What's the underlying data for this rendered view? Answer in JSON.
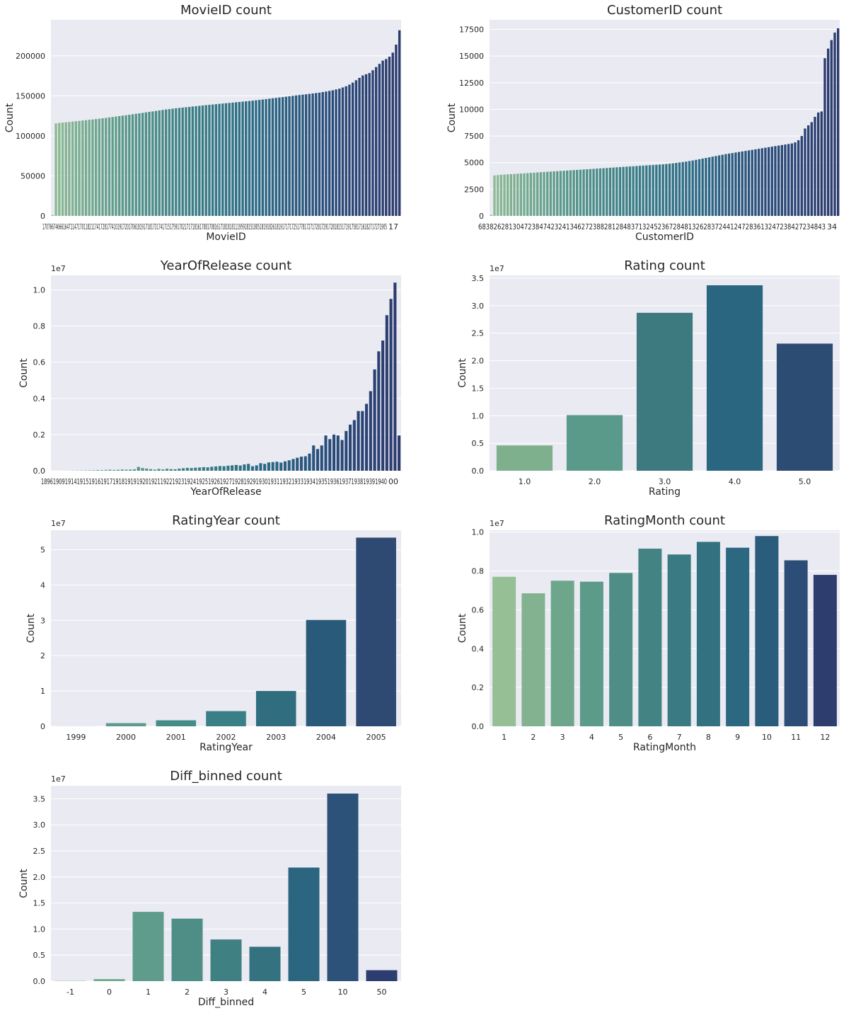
{
  "chart_data": [
    {
      "type": "bar",
      "title": "MovieID count",
      "xlabel": "MovieID",
      "ylabel": "Count",
      "ylim": [
        0,
        245000
      ],
      "yticks": [
        0,
        50000,
        100000,
        150000,
        200000
      ],
      "ytick_labels": [
        "0",
        "50000",
        "100000",
        "150000",
        "200000"
      ],
      "sci_label": "",
      "grid": true,
      "dense_tick_text": "1707667466616471147170118211741728177410191720170618191718173174171517591702171718161708170816171818181119591815180518191826181917171725177817271728172917281815171917581716182717271905",
      "dense_tick_last": "17",
      "dense_tick_prefix": "17",
      "palette": [
        "#8fbc94",
        "#5a9a8a",
        "#3a7f86",
        "#2b6a85",
        "#2a4c7a",
        "#2c3b6e"
      ],
      "values": [
        1200,
        115500,
        116200,
        116600,
        117000,
        117400,
        117900,
        118300,
        118700,
        119200,
        119600,
        120100,
        120500,
        121000,
        121500,
        122000,
        122500,
        123100,
        123600,
        124200,
        124700,
        125300,
        125800,
        126400,
        127000,
        127600,
        128200,
        128800,
        129400,
        130000,
        130600,
        131200,
        131800,
        132400,
        133000,
        133500,
        134000,
        134500,
        135000,
        135400,
        135800,
        136200,
        136700,
        137100,
        137500,
        138000,
        138400,
        138800,
        139200,
        139600,
        140000,
        140400,
        140800,
        141200,
        141600,
        142000,
        142400,
        142800,
        143200,
        143600,
        144000,
        144500,
        145000,
        145500,
        146000,
        146500,
        147000,
        147500,
        148000,
        148500,
        149000,
        149500,
        150000,
        150500,
        151000,
        151500,
        152000,
        152500,
        153000,
        153500,
        154000,
        154700,
        155400,
        156200,
        157000,
        158000,
        159000,
        160500,
        162000,
        164000,
        166500,
        169500,
        172500,
        175500,
        177000,
        178500,
        182000,
        186000,
        190000,
        194000,
        196000,
        199000,
        204000,
        214000,
        232000
      ]
    },
    {
      "type": "bar",
      "title": "CustomerID count",
      "xlabel": "CustomerID",
      "ylabel": "Count",
      "ylim": [
        0,
        18400
      ],
      "yticks": [
        0,
        2500,
        5000,
        7500,
        10000,
        12500,
        15000,
        17500
      ],
      "ytick_labels": [
        "0",
        "2500",
        "5000",
        "7500",
        "10000",
        "12500",
        "15000",
        "17500"
      ],
      "sci_label": "",
      "grid": true,
      "dense_tick_text": "6838262813047238474232413462723882812848371324523672848132628372441247283613247238427234843",
      "dense_tick_last": "34",
      "dense_tick_prefix": "6",
      "palette": [
        "#8fbc94",
        "#5a9a8a",
        "#3a7f86",
        "#2b6a85",
        "#2a4c7a",
        "#2c3b6e"
      ],
      "values": [
        100,
        3800,
        3830,
        3860,
        3880,
        3900,
        3920,
        3940,
        3960,
        3980,
        4000,
        4020,
        4040,
        4060,
        4080,
        4100,
        4120,
        4140,
        4160,
        4180,
        4200,
        4220,
        4240,
        4260,
        4280,
        4300,
        4320,
        4340,
        4360,
        4380,
        4400,
        4420,
        4440,
        4460,
        4480,
        4500,
        4520,
        4540,
        4560,
        4580,
        4600,
        4620,
        4640,
        4660,
        4680,
        4700,
        4720,
        4740,
        4760,
        4780,
        4800,
        4820,
        4840,
        4870,
        4900,
        4940,
        4980,
        5020,
        5060,
        5100,
        5150,
        5200,
        5260,
        5320,
        5380,
        5440,
        5500,
        5560,
        5620,
        5680,
        5740,
        5800,
        5850,
        5900,
        5950,
        6000,
        6050,
        6100,
        6150,
        6200,
        6250,
        6300,
        6350,
        6400,
        6450,
        6500,
        6550,
        6600,
        6650,
        6700,
        6750,
        6800,
        6900,
        7100,
        7500,
        8200,
        8500,
        8800,
        9300,
        9700,
        9800,
        14800,
        15700,
        16500,
        17200,
        17600
      ]
    },
    {
      "type": "bar",
      "title": "YearOfRelease count",
      "xlabel": "YearOfRelease",
      "ylabel": "Count",
      "ylim": [
        0,
        10800000
      ],
      "yticks": [
        0,
        2000000,
        4000000,
        6000000,
        8000000,
        10000000
      ],
      "ytick_labels": [
        "0.0",
        "0.2",
        "0.4",
        "0.6",
        "0.8",
        "1.0"
      ],
      "sci_label": "1e7",
      "grid": true,
      "dense_tick_text": "18961909191419151916191719181919192019211922192319241925192619271928192919301931193219331934193519361937193819391940",
      "dense_tick_last": "00",
      "dense_tick_prefix": "18",
      "palette": [
        "#8fbc94",
        "#5a9a8a",
        "#3a7f86",
        "#2b6a85",
        "#2a4c7a",
        "#2c3b6e"
      ],
      "values": [
        2000,
        3000,
        4000,
        5000,
        8000,
        10000,
        12000,
        15000,
        20000,
        25000,
        30000,
        40000,
        35000,
        50000,
        60000,
        45000,
        55000,
        70000,
        60000,
        65000,
        80000,
        210000,
        150000,
        120000,
        90000,
        60000,
        100000,
        70000,
        110000,
        90000,
        80000,
        120000,
        140000,
        160000,
        150000,
        170000,
        180000,
        200000,
        190000,
        220000,
        240000,
        260000,
        250000,
        280000,
        300000,
        320000,
        290000,
        350000,
        380000,
        250000,
        300000,
        420000,
        380000,
        460000,
        480000,
        500000,
        450000,
        520000,
        580000,
        650000,
        720000,
        780000,
        800000,
        950000,
        1400000,
        1200000,
        1400000,
        1950000,
        1750000,
        2000000,
        1950000,
        1700000,
        2200000,
        2550000,
        2800000,
        3300000,
        3300000,
        3700000,
        4400000,
        5600000,
        6600000,
        7200000,
        8600000,
        9500000,
        10400000,
        1950000
      ]
    },
    {
      "type": "bar",
      "title": "Rating count",
      "xlabel": "Rating",
      "ylabel": "Count",
      "categories": [
        "1.0",
        "2.0",
        "3.0",
        "4.0",
        "5.0"
      ],
      "values": [
        4600000,
        10100000,
        28700000,
        33700000,
        23100000
      ],
      "ylim": [
        0,
        35500000
      ],
      "yticks": [
        0,
        5000000,
        10000000,
        15000000,
        20000000,
        25000000,
        30000000,
        35000000
      ],
      "ytick_labels": [
        "0.0",
        "0.5",
        "1.0",
        "1.5",
        "2.0",
        "2.5",
        "3.0",
        "3.5"
      ],
      "sci_label": "1e7",
      "grid": true,
      "palette": [
        "#7fb08e",
        "#5a9a8a",
        "#3d7a80",
        "#2a6680",
        "#2c4c74"
      ]
    },
    {
      "type": "bar",
      "title": "RatingYear count",
      "xlabel": "RatingYear",
      "ylabel": "Count",
      "categories": [
        "1999",
        "2000",
        "2001",
        "2002",
        "2003",
        "2004",
        "2005"
      ],
      "values": [
        20000,
        900000,
        1700000,
        4300000,
        10000000,
        30100000,
        53400000
      ],
      "ylim": [
        0,
        55500000
      ],
      "yticks": [
        0,
        10000000,
        20000000,
        30000000,
        40000000,
        50000000
      ],
      "ytick_labels": [
        "0",
        "1",
        "2",
        "3",
        "4",
        "5"
      ],
      "sci_label": "1e7",
      "grid": true,
      "palette": [
        "#86b892",
        "#5d9c8c",
        "#468c86",
        "#3a7f86",
        "#306d7f",
        "#2a5a7a",
        "#2f4a72"
      ]
    },
    {
      "type": "bar",
      "title": "RatingMonth count",
      "xlabel": "RatingMonth",
      "ylabel": "Count",
      "categories": [
        "1",
        "2",
        "3",
        "4",
        "5",
        "6",
        "7",
        "8",
        "9",
        "10",
        "11",
        "12"
      ],
      "values": [
        7700000,
        6850000,
        7500000,
        7450000,
        7900000,
        9150000,
        8850000,
        9500000,
        9200000,
        9800000,
        8550000,
        7800000
      ],
      "ylim": [
        0,
        10100000
      ],
      "yticks": [
        0,
        2000000,
        4000000,
        6000000,
        8000000,
        10000000
      ],
      "ytick_labels": [
        "0.0",
        "0.2",
        "0.4",
        "0.6",
        "0.8",
        "1.0"
      ],
      "sci_label": "1e7",
      "grid": true,
      "palette": [
        "#96bf96",
        "#82b28f",
        "#6ea68c",
        "#5c9a8a",
        "#4f8e86",
        "#438383",
        "#3a7a82",
        "#327180",
        "#2c687f",
        "#2a5d7c",
        "#2c4e76",
        "#2d3d6e"
      ]
    },
    {
      "type": "bar",
      "title": "Diff_binned count",
      "xlabel": "Diff_binned",
      "ylabel": "Count",
      "categories": [
        "-1",
        "0",
        "1",
        "2",
        "3",
        "4",
        "5",
        "10",
        "50"
      ],
      "values": [
        50000,
        400000,
        13300000,
        12000000,
        8000000,
        6600000,
        21800000,
        36000000,
        2100000
      ],
      "ylim": [
        0,
        37500000
      ],
      "yticks": [
        0,
        5000000,
        10000000,
        15000000,
        20000000,
        25000000,
        30000000,
        35000000
      ],
      "ytick_labels": [
        "0.0",
        "0.5",
        "1.0",
        "1.5",
        "2.0",
        "2.5",
        "3.0",
        "3.5"
      ],
      "sci_label": "1e7",
      "grid": true,
      "palette": [
        "#86b892",
        "#74ac8e",
        "#5f9c8b",
        "#4e8e87",
        "#3f8083",
        "#347280",
        "#2b6580",
        "#2c5279",
        "#2e3d6f"
      ]
    }
  ]
}
